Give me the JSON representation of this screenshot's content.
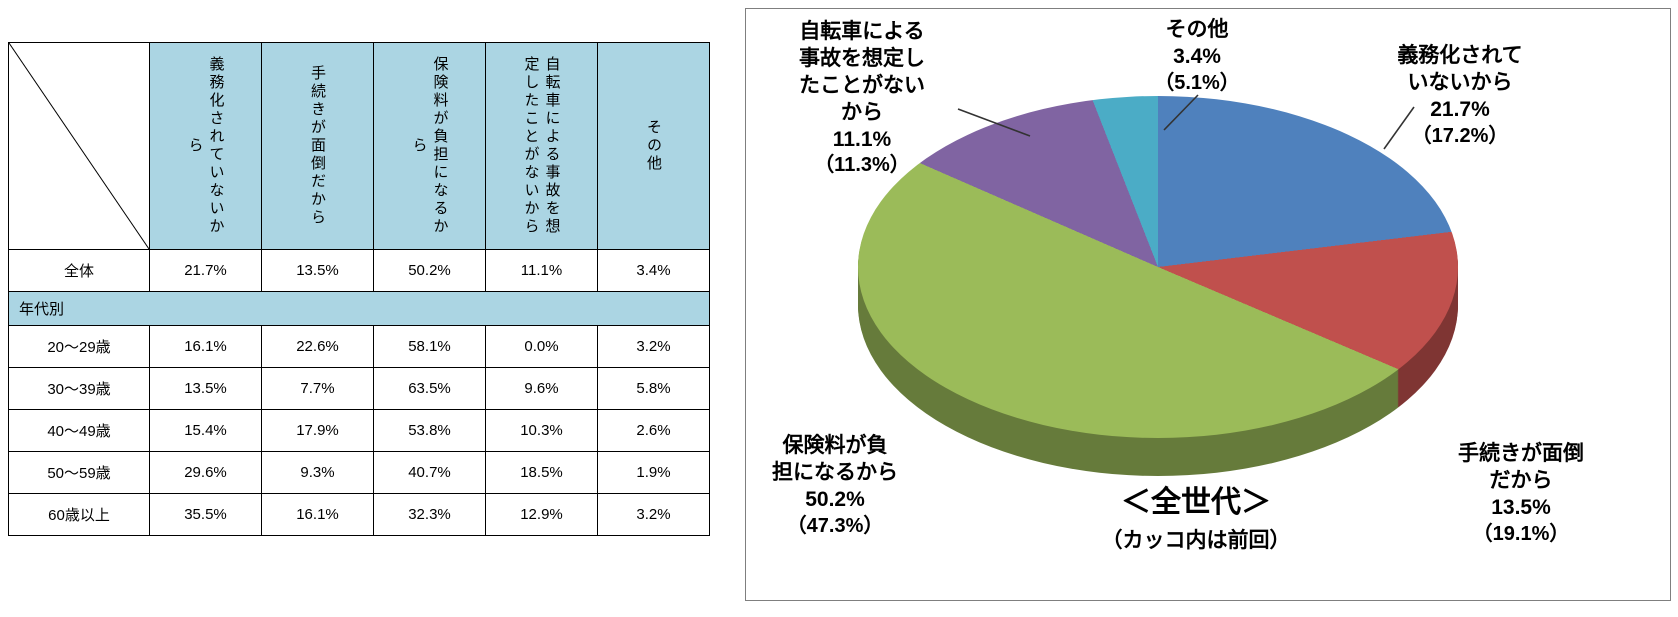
{
  "table": {
    "header_bg": "#abd5e3",
    "columns": [
      "義務化されていないから",
      "手続きが面倒だから",
      "保険料が負担になるから",
      "自転車による事故を想定したことがないから",
      "その他"
    ],
    "rows": [
      {
        "type": "data",
        "label": "全体",
        "values": [
          "21.7%",
          "13.5%",
          "50.2%",
          "11.1%",
          "3.4%"
        ]
      },
      {
        "type": "section",
        "label": "年代別"
      },
      {
        "type": "data",
        "label": "20～29歳",
        "values": [
          "16.1%",
          "22.6%",
          "58.1%",
          "0.0%",
          "3.2%"
        ]
      },
      {
        "type": "data",
        "label": "30～39歳",
        "values": [
          "13.5%",
          "7.7%",
          "63.5%",
          "9.6%",
          "5.8%"
        ]
      },
      {
        "type": "data",
        "label": "40～49歳",
        "values": [
          "15.4%",
          "17.9%",
          "53.8%",
          "10.3%",
          "2.6%"
        ]
      },
      {
        "type": "data",
        "label": "50～59歳",
        "values": [
          "29.6%",
          "9.3%",
          "40.7%",
          "18.5%",
          "1.9%"
        ]
      },
      {
        "type": "data",
        "label": "60歳以上",
        "values": [
          "35.5%",
          "16.1%",
          "32.3%",
          "12.9%",
          "3.2%"
        ]
      }
    ]
  },
  "chart_data": {
    "type": "pie",
    "title": "＜全世代＞",
    "subtitle": "（カッコ内は前回）",
    "unit": "%",
    "start_angle_deg": 0,
    "direction": "clockwise",
    "style": "3d",
    "slices": [
      {
        "label": "義務化されていないから",
        "value": 21.7,
        "previous": 17.2,
        "color": "#4f81bd",
        "callout_label": "義務化されて\nいないから",
        "pct_text": "21.7%",
        "prev_text": "（17.2%）"
      },
      {
        "label": "手続きが面倒だから",
        "value": 13.5,
        "previous": 19.1,
        "color": "#c0504d",
        "callout_label": "手続きが面倒\nだから",
        "pct_text": "13.5%",
        "prev_text": "（19.1%）"
      },
      {
        "label": "保険料が負担になるから",
        "value": 50.2,
        "previous": 47.3,
        "color": "#9bbb59",
        "callout_label": "保険料が負\n担になるから",
        "pct_text": "50.2%",
        "prev_text": "（47.3%）"
      },
      {
        "label": "自転車による事故を想定したことがないから",
        "value": 11.1,
        "previous": 11.3,
        "color": "#8064a2",
        "callout_label": "自転車による\n事故を想定し\nたことがない\nから",
        "pct_text": "11.1%",
        "prev_text": "（11.3%）"
      },
      {
        "label": "その他",
        "value": 3.4,
        "previous": 5.1,
        "color": "#4bacc6",
        "callout_label": "その他",
        "pct_text": "3.4%",
        "prev_text": "（5.1%）"
      }
    ]
  }
}
